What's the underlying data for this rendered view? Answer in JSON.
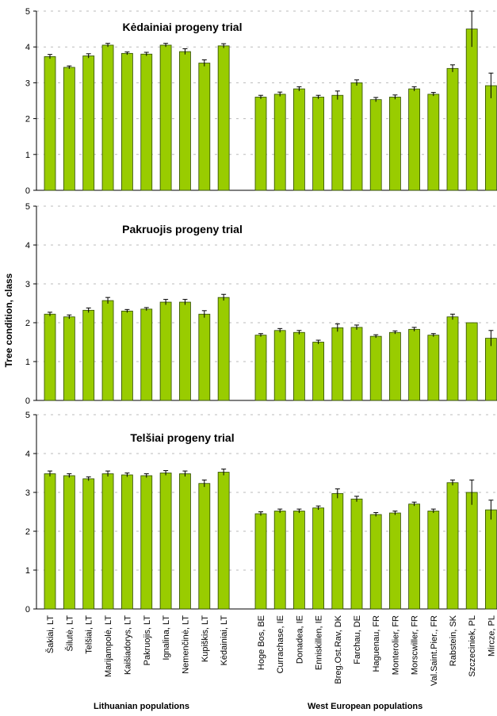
{
  "ylabel": "Tree condition, class",
  "group_labels": [
    "Lithuanian populations",
    "West European populations"
  ],
  "chart_data": {
    "type": "bar",
    "ylabel": "Tree condition, class",
    "ylim": [
      0,
      5
    ],
    "yticks": [
      0,
      1,
      2,
      3,
      4,
      5
    ],
    "grid": "dashed horizontal",
    "bar_color": "#99cc00",
    "bar_edge_color": "#2e4a00",
    "categories": [
      "Šakiai, LT",
      "Šilutė, LT",
      "Telšiai, LT",
      "Marijampolė, LT",
      "Kaišiadorys, LT",
      "Pakruojis, LT",
      "Ignalina, LT",
      "Nemenčinė, LT",
      "Kupiškis, LT",
      "Kėdainiai, LT",
      "Hoge Bos, BE",
      "Currachase, IE",
      "Donadea, IE",
      "Enniskillen, IE",
      "Breg.Ost.Rav, DK",
      "Farchau, DE",
      "Haguenau, FR",
      "Monterolier, FR",
      "Morscwiller, FR",
      "Val.Saint.Pier., FR",
      "Rabstein, SK",
      "Szczeciniek, PL",
      "Mircze, PL"
    ],
    "groups": [
      {
        "label": "Lithuanian populations",
        "start": 0,
        "end": 9
      },
      {
        "label": "West European populations",
        "start": 10,
        "end": 22
      }
    ],
    "panels": [
      {
        "title": "Kėdainiai progeny trial",
        "values": [
          3.73,
          3.43,
          3.75,
          4.05,
          3.82,
          3.8,
          4.05,
          3.87,
          3.55,
          4.03,
          2.6,
          2.68,
          2.83,
          2.6,
          2.65,
          3.0,
          2.53,
          2.6,
          2.83,
          2.68,
          3.4,
          4.5,
          2.92
        ],
        "errors": [
          0.06,
          0.04,
          0.06,
          0.05,
          0.04,
          0.05,
          0.05,
          0.08,
          0.09,
          0.06,
          0.05,
          0.06,
          0.06,
          0.05,
          0.12,
          0.08,
          0.06,
          0.06,
          0.06,
          0.05,
          0.1,
          0.5,
          0.35
        ]
      },
      {
        "title": "Pakruojis progeny trial",
        "values": [
          2.22,
          2.15,
          2.32,
          2.57,
          2.3,
          2.35,
          2.53,
          2.53,
          2.22,
          2.65,
          1.68,
          1.8,
          1.75,
          1.5,
          1.87,
          1.88,
          1.65,
          1.75,
          1.83,
          1.68,
          2.15,
          2.0,
          1.6
        ],
        "errors": [
          0.05,
          0.05,
          0.06,
          0.08,
          0.04,
          0.04,
          0.07,
          0.07,
          0.09,
          0.08,
          0.04,
          0.05,
          0.05,
          0.05,
          0.1,
          0.06,
          0.04,
          0.04,
          0.05,
          0.04,
          0.07,
          0.0,
          0.2
        ]
      },
      {
        "title": "Telšiai progeny trial",
        "values": [
          3.48,
          3.43,
          3.35,
          3.48,
          3.45,
          3.43,
          3.5,
          3.48,
          3.23,
          3.52,
          2.45,
          2.52,
          2.52,
          2.6,
          2.97,
          2.83,
          2.43,
          2.47,
          2.7,
          2.52,
          3.25,
          3.0,
          2.55
        ]
      }
    ],
    "panel_errors_3": [
      0.07,
      0.05,
      0.05,
      0.07,
      0.05,
      0.05,
      0.06,
      0.07,
      0.09,
      0.08,
      0.05,
      0.05,
      0.05,
      0.05,
      0.12,
      0.07,
      0.05,
      0.05,
      0.05,
      0.05,
      0.07,
      0.32,
      0.25
    ]
  }
}
